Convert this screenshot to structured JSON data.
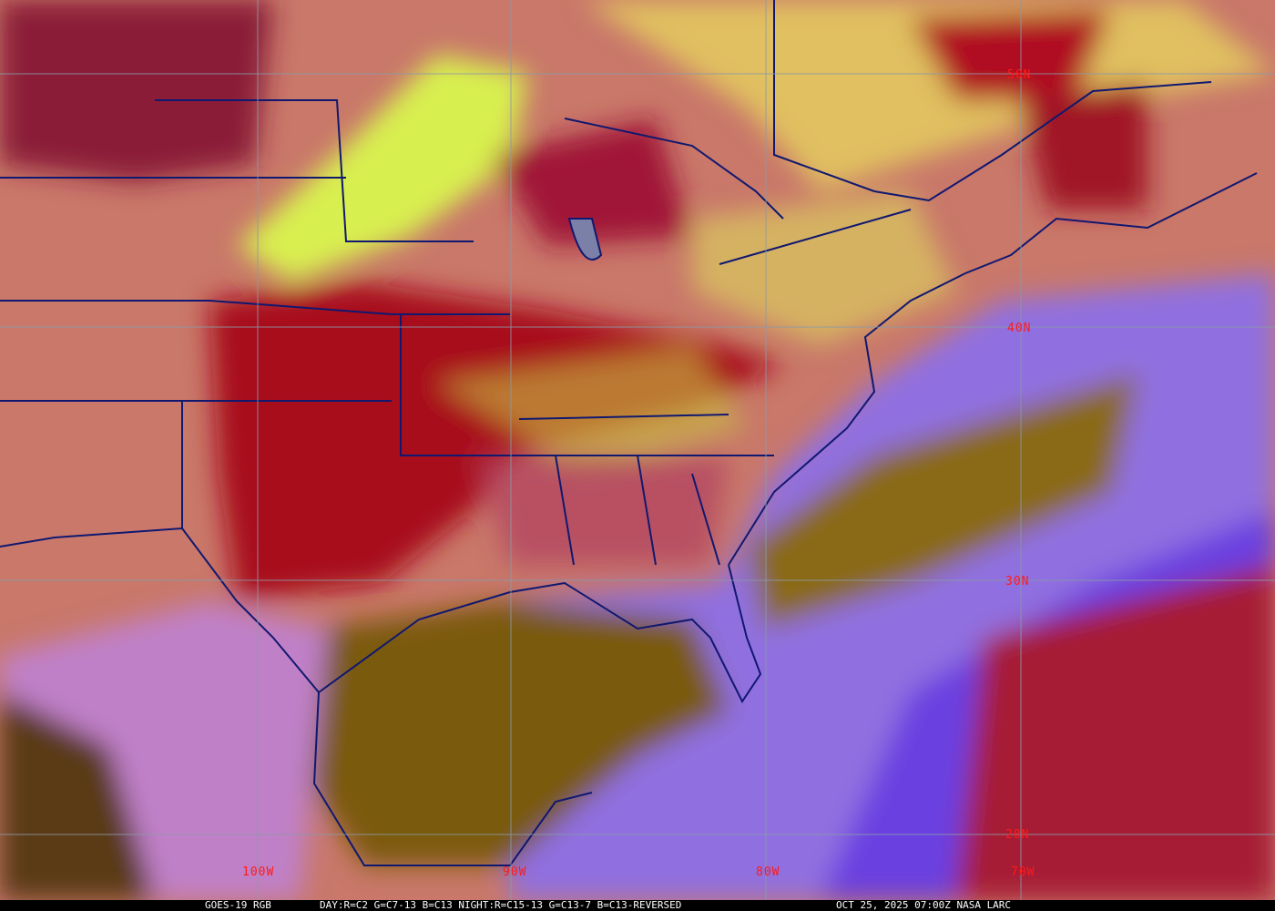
{
  "caption": {
    "product": "GOES-19 RGB",
    "recipe": "DAY:R=C2 G=C7-13 B=C13 NIGHT:R=C15-13 G=C13-7 B=C13-REVERSED",
    "timestamp": "OCT 25, 2025 07:00Z NASA LARC"
  },
  "grid": {
    "latitudes": [
      "50N",
      "40N",
      "30N",
      "20N"
    ],
    "longitudes": [
      "100W",
      "90W",
      "80W",
      "70W"
    ],
    "label_color": "#ff1a1a",
    "line_color": "#8a9aa8"
  },
  "colors": {
    "land_clear": "#c9786a",
    "high_cloud_red": "#a0101a",
    "low_cloud_yellow": "#d8d040",
    "ocean_clear": "#8a6a10",
    "moist_violet": "#7a5cf0",
    "borders": "#101870"
  }
}
